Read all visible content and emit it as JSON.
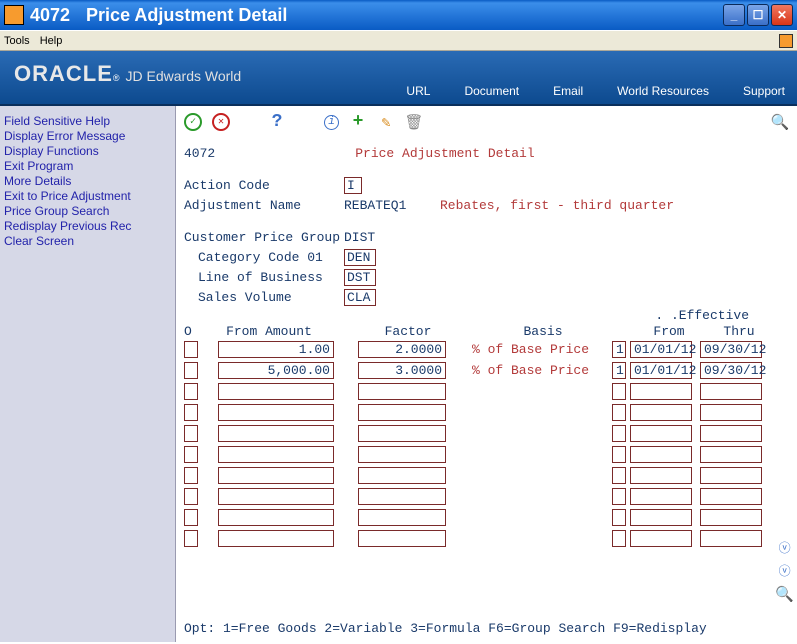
{
  "window": {
    "code": "4072",
    "title": "Price Adjustment Detail"
  },
  "menu": {
    "tools": "Tools",
    "help": "Help"
  },
  "banner": {
    "brand": "ORACLE",
    "sub": "JD Edwards World",
    "links": {
      "url": "URL",
      "document": "Document",
      "email": "Email",
      "world": "World Resources",
      "support": "Support"
    }
  },
  "sidebar": {
    "items": [
      "Field Sensitive Help",
      "Display Error Message",
      "Display Functions",
      "Exit Program",
      "More Details",
      "Exit to Price Adjustment",
      "Price Group Search",
      "Redisplay Previous Rec",
      "Clear Screen"
    ]
  },
  "screen": {
    "number": "4072",
    "title": "Price Adjustment Detail"
  },
  "form": {
    "action_label": "Action Code",
    "action_value": "I",
    "adj_label": "Adjustment Name",
    "adj_value": "REBATEQ1",
    "adj_desc": "Rebates, first - third quarter",
    "cpg_label": "Customer Price Group",
    "cpg_value": "DIST",
    "cat_label": "Category Code 01",
    "cat_value": "DEN",
    "lob_label": "Line of Business",
    "lob_value": "DST",
    "sv_label": "Sales Volume",
    "sv_value": "CLA"
  },
  "grid": {
    "effective_label": ". .Effective",
    "headers": {
      "o": "O",
      "from_amount": "From Amount",
      "factor": "Factor",
      "basis": "Basis",
      "from": "From",
      "thru": "Thru"
    },
    "rows": [
      {
        "o": "",
        "from_amount": "1.00",
        "factor": "2.0000",
        "basis": "% of Base Price",
        "c": "1",
        "eff_from": "01/01/12",
        "eff_thru": "09/30/12"
      },
      {
        "o": "",
        "from_amount": "5,000.00",
        "factor": "3.0000",
        "basis": "% of Base Price",
        "c": "1",
        "eff_from": "01/01/12",
        "eff_thru": "09/30/12"
      },
      {
        "o": "",
        "from_amount": "",
        "factor": "",
        "basis": "",
        "c": "",
        "eff_from": "",
        "eff_thru": ""
      },
      {
        "o": "",
        "from_amount": "",
        "factor": "",
        "basis": "",
        "c": "",
        "eff_from": "",
        "eff_thru": ""
      },
      {
        "o": "",
        "from_amount": "",
        "factor": "",
        "basis": "",
        "c": "",
        "eff_from": "",
        "eff_thru": ""
      },
      {
        "o": "",
        "from_amount": "",
        "factor": "",
        "basis": "",
        "c": "",
        "eff_from": "",
        "eff_thru": ""
      },
      {
        "o": "",
        "from_amount": "",
        "factor": "",
        "basis": "",
        "c": "",
        "eff_from": "",
        "eff_thru": ""
      },
      {
        "o": "",
        "from_amount": "",
        "factor": "",
        "basis": "",
        "c": "",
        "eff_from": "",
        "eff_thru": ""
      },
      {
        "o": "",
        "from_amount": "",
        "factor": "",
        "basis": "",
        "c": "",
        "eff_from": "",
        "eff_thru": ""
      },
      {
        "o": "",
        "from_amount": "",
        "factor": "",
        "basis": "",
        "c": "",
        "eff_from": "",
        "eff_thru": ""
      }
    ]
  },
  "footer": "    Opt:   1=Free Goods   2=Variable   3=Formula     F6=Group Search   F9=Redisplay",
  "colors": {
    "banner_top": "#2a6bb5",
    "banner_bottom": "#0d4a8f",
    "red_text": "#b33a3a",
    "blue_text": "#1a3a6a",
    "sidebar_bg": "#d6d8e7"
  }
}
